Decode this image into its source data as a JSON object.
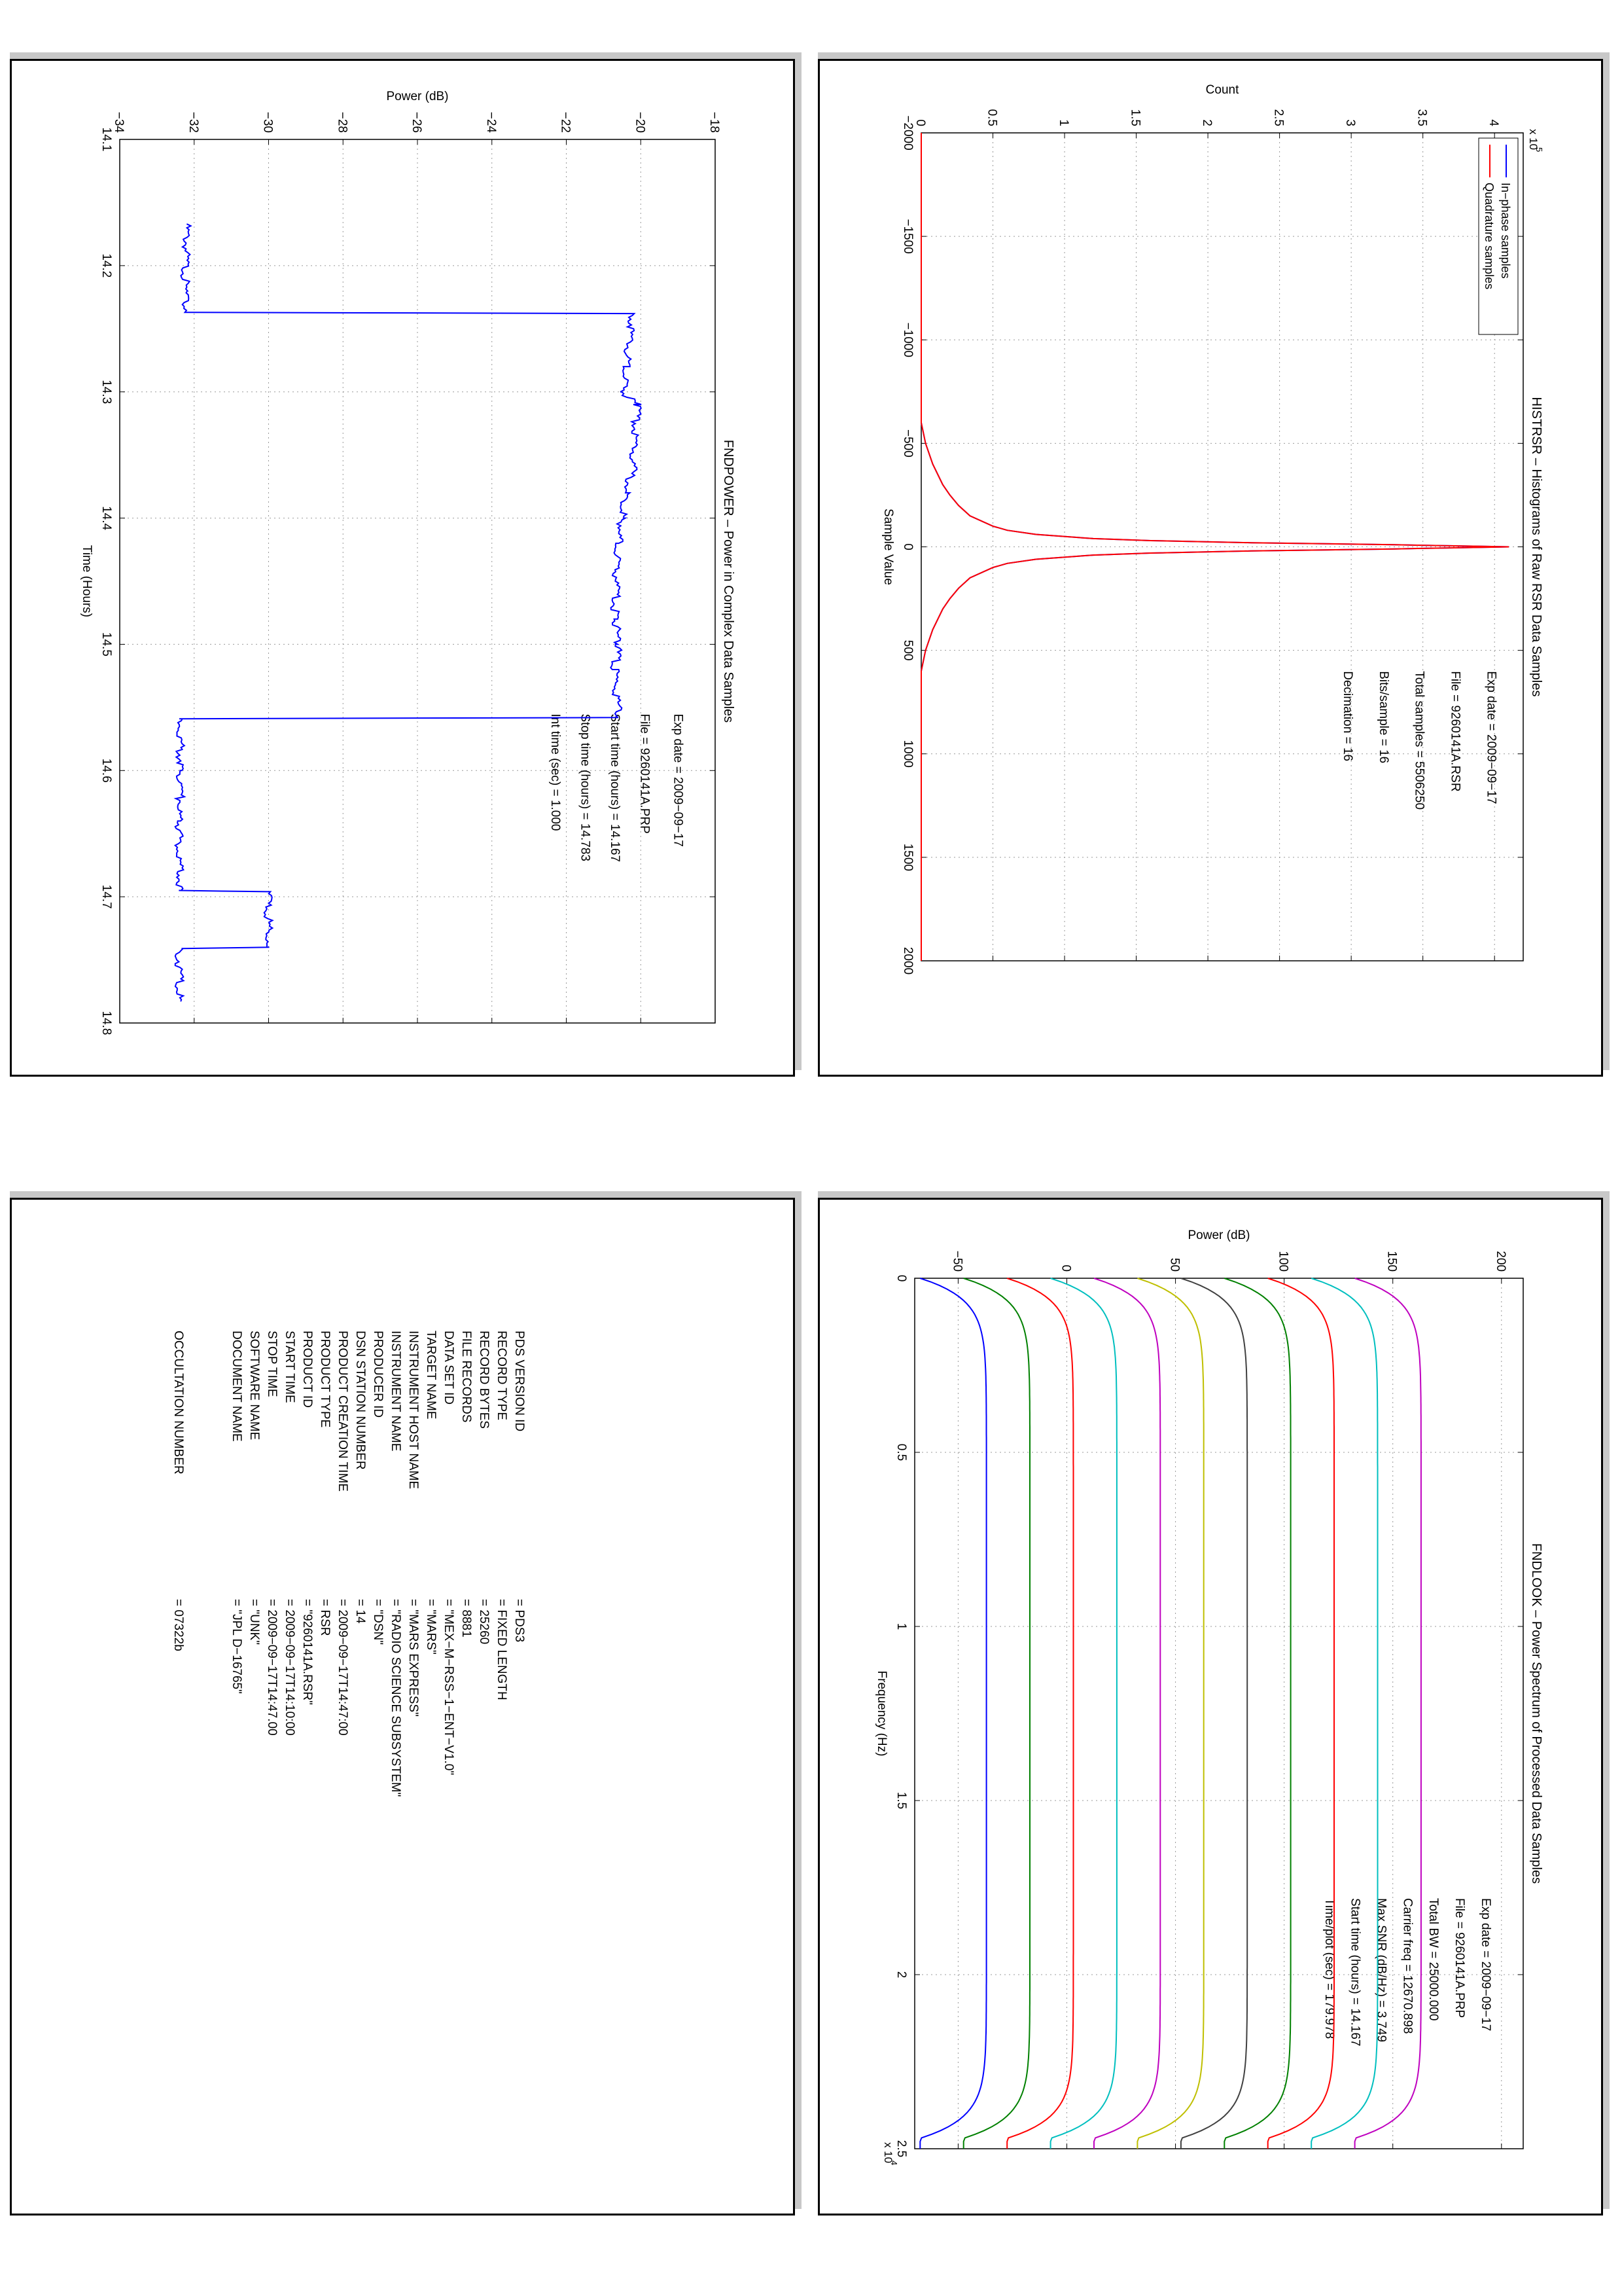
{
  "chart_data": [
    {
      "id": "histrsr",
      "type": "line",
      "title": "HISTRSR – Histograms of Raw RSR Data Samples",
      "xlabel": "Sample Value",
      "ylabel": "Count",
      "xlim": [
        -2000,
        2000
      ],
      "ylim": [
        0,
        4.2
      ],
      "y_exponent_label": "x 10",
      "y_exponent_power": "5",
      "xticks": [
        -2000,
        -1500,
        -1000,
        -500,
        0,
        500,
        1000,
        1500,
        2000
      ],
      "xtick_labels": [
        "−2000",
        "−1500",
        "−1000",
        "−500",
        "0",
        "500",
        "1000",
        "1500",
        "2000"
      ],
      "yticks": [
        0,
        0.5,
        1,
        1.5,
        2,
        2.5,
        3,
        3.5,
        4
      ],
      "ytick_labels": [
        "0",
        "0.5",
        "1",
        "1.5",
        "2",
        "2.5",
        "3",
        "3.5",
        "4"
      ],
      "grid": true,
      "legend_position": "top-left",
      "series": [
        {
          "name": "In−phase samples",
          "color": "#0000ff",
          "x": [
            -2000,
            -600,
            -500,
            -400,
            -300,
            -250,
            -200,
            -150,
            -100,
            -80,
            -60,
            -40,
            -30,
            -20,
            -10,
            0,
            10,
            20,
            30,
            40,
            60,
            80,
            100,
            150,
            200,
            250,
            300,
            400,
            500,
            600,
            2000
          ],
          "y": [
            0,
            0,
            0.03,
            0.08,
            0.15,
            0.2,
            0.26,
            0.34,
            0.5,
            0.6,
            0.8,
            1.2,
            1.6,
            2.3,
            3.3,
            4.1,
            3.3,
            2.3,
            1.6,
            1.2,
            0.8,
            0.6,
            0.5,
            0.34,
            0.26,
            0.2,
            0.15,
            0.08,
            0.03,
            0,
            0
          ]
        },
        {
          "name": "Quadrature samples",
          "color": "#ff0000",
          "x": [
            -2000,
            -600,
            -500,
            -400,
            -300,
            -250,
            -200,
            -150,
            -100,
            -80,
            -60,
            -40,
            -30,
            -20,
            -10,
            0,
            10,
            20,
            30,
            40,
            60,
            80,
            100,
            150,
            200,
            250,
            300,
            400,
            500,
            600,
            2000
          ],
          "y": [
            0,
            0,
            0.03,
            0.08,
            0.15,
            0.2,
            0.26,
            0.34,
            0.5,
            0.6,
            0.8,
            1.2,
            1.6,
            2.3,
            3.3,
            4.1,
            3.3,
            2.3,
            1.6,
            1.2,
            0.8,
            0.6,
            0.5,
            0.34,
            0.26,
            0.2,
            0.15,
            0.08,
            0.03,
            0,
            0
          ]
        }
      ],
      "annotations": [
        {
          "label": "Exp date = 2009−09−17",
          "x": 600,
          "y": 3.95
        },
        {
          "label": "File = 9260141A.RSR",
          "x": 600,
          "y": 3.7
        },
        {
          "label": "Total samples =  5506250",
          "x": 600,
          "y": 3.45
        },
        {
          "label": "Bits/sample    =        16",
          "x": 600,
          "y": 3.2
        },
        {
          "label": "Decimation    =        16",
          "x": 600,
          "y": 2.95
        }
      ]
    },
    {
      "id": "fndpower",
      "type": "line",
      "title": "FNDPOWER – Power in Complex Data Samples",
      "xlabel": "Time (Hours)",
      "ylabel": "Power (dB)",
      "xlim": [
        14.1,
        14.8
      ],
      "ylim": [
        -34,
        -18
      ],
      "xticks": [
        14.1,
        14.2,
        14.3,
        14.4,
        14.5,
        14.6,
        14.7,
        14.8
      ],
      "xtick_labels": [
        "14.1",
        "14.2",
        "14.3",
        "14.4",
        "14.5",
        "14.6",
        "14.7",
        "14.8"
      ],
      "yticks": [
        -34,
        -32,
        -30,
        -28,
        -26,
        -24,
        -22,
        -20,
        -18
      ],
      "ytick_labels": [
        "−34",
        "−32",
        "−30",
        "−28",
        "−26",
        "−24",
        "−22",
        "−20",
        "−18"
      ],
      "grid": true,
      "series": [
        {
          "color": "#0000ff",
          "x": [
            14.167,
            14.22,
            14.237,
            14.238,
            14.28,
            14.3,
            14.31,
            14.36,
            14.38,
            14.4,
            14.42,
            14.48,
            14.5,
            14.52,
            14.558,
            14.559,
            14.6,
            14.64,
            14.695,
            14.696,
            14.74,
            14.741,
            14.783
          ],
          "y": [
            -32.2,
            -32.25,
            -32.2,
            -20.2,
            -20.4,
            -20.5,
            -20.1,
            -20.2,
            -20.4,
            -20.5,
            -20.6,
            -20.7,
            -20.6,
            -20.7,
            -20.6,
            -32.4,
            -32.35,
            -32.4,
            -32.4,
            -30.0,
            -30.0,
            -32.4,
            -32.4
          ]
        }
      ],
      "annotations": [
        {
          "label": "Exp date = 2009−09−17",
          "x": 14.555,
          "y": -19.1
        },
        {
          "label": "File = 9260141A.PRP",
          "x": 14.555,
          "y": -20.0
        },
        {
          "label": "Start time (hours) = 14.167",
          "x": 14.555,
          "y": -20.8
        },
        {
          "label": "Stop time (hours) = 14.783",
          "x": 14.555,
          "y": -21.6
        },
        {
          "label": "Int time (sec) =    1.000",
          "x": 14.555,
          "y": -22.4
        }
      ]
    },
    {
      "id": "fndlook",
      "type": "line",
      "title": "FNDLOOK – Power Spectrum of Processed Data Samples",
      "xlabel": "Frequency (Hz)",
      "ylabel": "Power (dB)",
      "xlim": [
        0,
        2.5
      ],
      "ylim": [
        -70,
        210
      ],
      "x_exponent_label": "x 10",
      "x_exponent_power": "4",
      "xticks": [
        0,
        0.5,
        1,
        1.5,
        2,
        2.5
      ],
      "xtick_labels": [
        "0",
        "0.5",
        "1",
        "1.5",
        "2",
        "2.5"
      ],
      "yticks": [
        -50,
        0,
        50,
        100,
        150,
        200
      ],
      "ytick_labels": [
        "−50",
        "0",
        "50",
        "100",
        "150",
        "200"
      ],
      "grid": true,
      "series": [
        {
          "color": "#0000ff",
          "base": -67.5,
          "peak": -37
        },
        {
          "color": "#008000",
          "base": -47.5,
          "peak": -17
        },
        {
          "color": "#ff0000",
          "base": -27.5,
          "peak": 3
        },
        {
          "color": "#00bfbf",
          "base": -7.5,
          "peak": 23
        },
        {
          "color": "#bf00bf",
          "base": 12.5,
          "peak": 43
        },
        {
          "color": "#bfbf00",
          "base": 32.5,
          "peak": 63
        },
        {
          "color": "#404040",
          "base": 52.5,
          "peak": 83
        },
        {
          "color": "#008000",
          "base": 72.5,
          "peak": 103
        },
        {
          "color": "#ff0000",
          "base": 92.5,
          "peak": 123
        },
        {
          "color": "#00bfbf",
          "base": 112.5,
          "peak": 143
        },
        {
          "color": "#bf00bf",
          "base": 132.5,
          "peak": 163
        }
      ],
      "annotations": [
        {
          "label": "Exp date = 2009−09−17",
          "x": 1.78,
          "y": 191
        },
        {
          "label": "File = 9260141A.PRP",
          "x": 1.78,
          "y": 179
        },
        {
          "label": "Total BW =      25000.000",
          "x": 1.78,
          "y": 167
        },
        {
          "label": "Carrier freq =   12670.898",
          "x": 1.78,
          "y": 155
        },
        {
          "label": "Max SNR (dB/Hz) =     3.749",
          "x": 1.78,
          "y": 143
        },
        {
          "label": "Start time (hours) =  14.167",
          "x": 1.78,
          "y": 131
        },
        {
          "label": "Time/plot (sec) =    179.978",
          "x": 1.78,
          "y": 119
        }
      ]
    }
  ],
  "label_panel": {
    "rows": [
      {
        "key": "PDS VERSION ID",
        "value": "= PDS3"
      },
      {
        "key": "RECORD TYPE",
        "value": "= FIXED LENGTH"
      },
      {
        "key": "RECORD BYTES",
        "value": "= 25260"
      },
      {
        "key": "FILE RECORDS",
        "value": "= 8881"
      },
      {
        "key": "DATA SET ID",
        "value": "= \"MEX−M−RSS−1−ENT−V1.0\""
      },
      {
        "key": "TARGET NAME",
        "value": "= \"MARS\""
      },
      {
        "key": "INSTRUMENT HOST NAME",
        "value": "= \"MARS EXPRESS\""
      },
      {
        "key": "INSTRUMENT NAME",
        "value": "= \"RADIO SCIENCE SUBSYSTEM\""
      },
      {
        "key": "PRODUCER ID",
        "value": "= \"DSN\""
      },
      {
        "key": "DSN STATION NUMBER",
        "value": "= 14"
      },
      {
        "key": "PRODUCT CREATION TIME",
        "value": "= 2009−09−17T14:47:00"
      },
      {
        "key": "PRODUCT TYPE",
        "value": "= RSR"
      },
      {
        "key": "PRODUCT ID",
        "value": "= \"9260141A.RSR\""
      },
      {
        "key": "START TIME",
        "value": "= 2009−09−17T14:10:00"
      },
      {
        "key": "STOP TIME",
        "value": "= 2009−09−17T14:47.00"
      },
      {
        "key": "SOFTWARE NAME",
        "value": "= \"UNK\""
      },
      {
        "key": "DOCUMENT NAME",
        "value": "= \"JPL D−16765\""
      },
      {
        "key": "OCCULTATION NUMBER",
        "value": "= 07322b"
      }
    ]
  }
}
